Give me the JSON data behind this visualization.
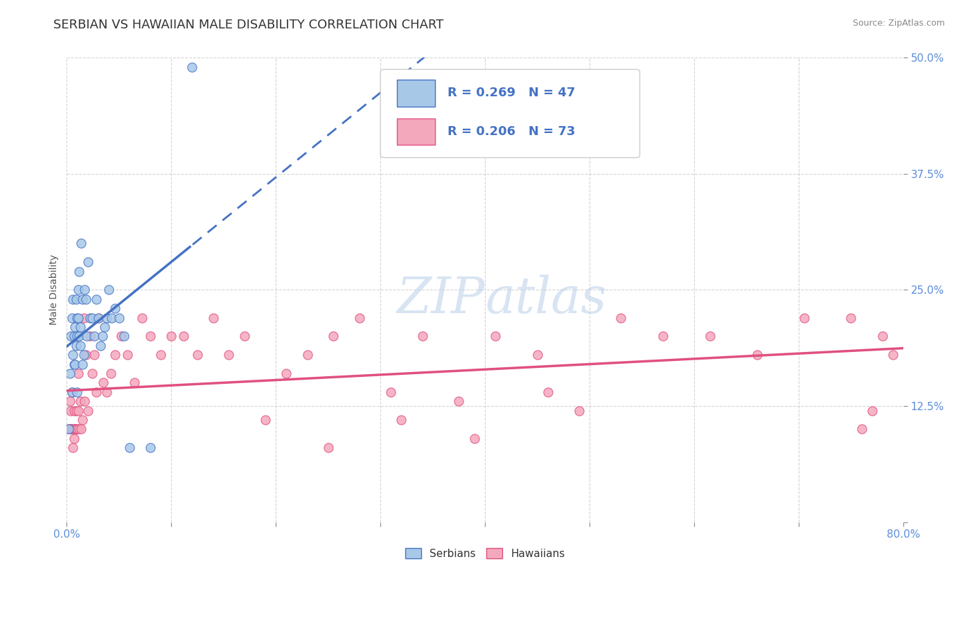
{
  "title": "SERBIAN VS HAWAIIAN MALE DISABILITY CORRELATION CHART",
  "source": "Source: ZipAtlas.com",
  "ylabel": "Male Disability",
  "xlim": [
    0.0,
    0.8
  ],
  "ylim": [
    0.0,
    0.5
  ],
  "xticks": [
    0.0,
    0.1,
    0.2,
    0.3,
    0.4,
    0.5,
    0.6,
    0.7,
    0.8
  ],
  "yticks": [
    0.0,
    0.125,
    0.25,
    0.375,
    0.5
  ],
  "ytick_labels": [
    "",
    "12.5%",
    "25.0%",
    "37.5%",
    "50.0%"
  ],
  "serbian_color": "#a8c8e8",
  "hawaiian_color": "#f4a8bc",
  "serbian_line_color": "#4472c4",
  "hawaiian_line_color": "#e05080",
  "R_serbian": 0.269,
  "N_serbian": 47,
  "R_hawaiian": 0.206,
  "N_hawaiian": 73,
  "background_color": "#ffffff",
  "grid_color": "#d0d0d0",
  "watermark_text": "ZIPatlas",
  "legend_label_serbian": "Serbians",
  "legend_label_hawaiian": "Hawaiians",
  "title_fontsize": 13,
  "axis_label_fontsize": 10,
  "tick_fontsize": 11,
  "tick_color": "#5b8dd9",
  "serbian_x": [
    0.002,
    0.003,
    0.004,
    0.005,
    0.005,
    0.006,
    0.006,
    0.007,
    0.007,
    0.008,
    0.008,
    0.009,
    0.009,
    0.01,
    0.01,
    0.01,
    0.011,
    0.011,
    0.012,
    0.012,
    0.013,
    0.013,
    0.014,
    0.015,
    0.015,
    0.016,
    0.017,
    0.018,
    0.019,
    0.02,
    0.022,
    0.024,
    0.026,
    0.028,
    0.03,
    0.032,
    0.034,
    0.036,
    0.038,
    0.04,
    0.043,
    0.046,
    0.05,
    0.055,
    0.06,
    0.08,
    0.12
  ],
  "serbian_y": [
    0.1,
    0.16,
    0.2,
    0.14,
    0.22,
    0.18,
    0.24,
    0.2,
    0.17,
    0.17,
    0.21,
    0.19,
    0.24,
    0.14,
    0.2,
    0.22,
    0.22,
    0.25,
    0.2,
    0.27,
    0.21,
    0.19,
    0.3,
    0.17,
    0.24,
    0.18,
    0.25,
    0.24,
    0.2,
    0.28,
    0.22,
    0.22,
    0.2,
    0.24,
    0.22,
    0.19,
    0.2,
    0.21,
    0.22,
    0.25,
    0.22,
    0.23,
    0.22,
    0.2,
    0.08,
    0.08,
    0.49
  ],
  "hawaiian_x": [
    0.002,
    0.003,
    0.003,
    0.004,
    0.004,
    0.005,
    0.005,
    0.006,
    0.006,
    0.007,
    0.007,
    0.008,
    0.008,
    0.009,
    0.009,
    0.01,
    0.01,
    0.011,
    0.011,
    0.012,
    0.013,
    0.014,
    0.015,
    0.016,
    0.017,
    0.018,
    0.02,
    0.022,
    0.024,
    0.026,
    0.028,
    0.03,
    0.035,
    0.038,
    0.042,
    0.046,
    0.052,
    0.058,
    0.065,
    0.072,
    0.08,
    0.09,
    0.1,
    0.112,
    0.125,
    0.14,
    0.155,
    0.17,
    0.19,
    0.21,
    0.23,
    0.255,
    0.28,
    0.31,
    0.34,
    0.375,
    0.41,
    0.45,
    0.49,
    0.53,
    0.57,
    0.615,
    0.66,
    0.705,
    0.75,
    0.76,
    0.77,
    0.78,
    0.79,
    0.46,
    0.39,
    0.32,
    0.25
  ],
  "hawaiian_y": [
    0.1,
    0.1,
    0.13,
    0.12,
    0.1,
    0.1,
    0.14,
    0.08,
    0.1,
    0.09,
    0.12,
    0.1,
    0.1,
    0.12,
    0.1,
    0.1,
    0.1,
    0.16,
    0.12,
    0.1,
    0.13,
    0.1,
    0.11,
    0.22,
    0.13,
    0.18,
    0.12,
    0.2,
    0.16,
    0.18,
    0.14,
    0.22,
    0.15,
    0.14,
    0.16,
    0.18,
    0.2,
    0.18,
    0.15,
    0.22,
    0.2,
    0.18,
    0.2,
    0.2,
    0.18,
    0.22,
    0.18,
    0.2,
    0.11,
    0.16,
    0.18,
    0.2,
    0.22,
    0.14,
    0.2,
    0.13,
    0.2,
    0.18,
    0.12,
    0.22,
    0.2,
    0.2,
    0.18,
    0.22,
    0.22,
    0.1,
    0.12,
    0.2,
    0.18,
    0.14,
    0.09,
    0.11,
    0.08
  ]
}
